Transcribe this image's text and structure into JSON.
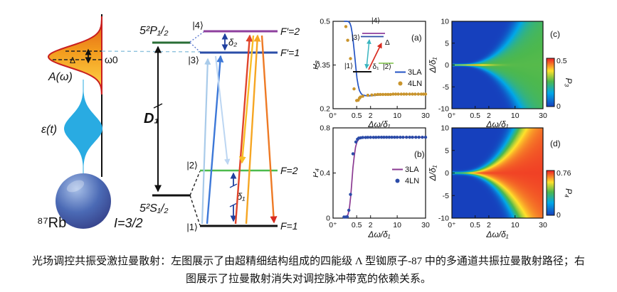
{
  "caption": {
    "line1": "光场调控共振受激拉曼散射：左图展示了由超精细结构组成的四能级 Λ 型铷原子-87 中的多通道共振拉曼散射路径；右",
    "line2": "图展示了拉曼散射消失对调控脉冲带宽的依赖关系。"
  },
  "diagram": {
    "spectrum_label": "A(ω)",
    "pulse_label": "ε(t)",
    "delta_label": "Δ",
    "omega0_label": "ω0",
    "atom_label": "⁸⁷Rb",
    "spin_label": "I=3/2",
    "p_state": "5²P₁/₂",
    "s_state": "5²S₁/₂",
    "d1_label": "D₁",
    "delta1_label": "δ₁",
    "delta2_label": "δ₂",
    "kets": {
      "k1": "|1⟩",
      "k2": "|2⟩",
      "k3": "|3⟩",
      "k4": "|4⟩"
    },
    "hyperfine": {
      "fp2": "F′=2",
      "fp1": "F′=1",
      "f2": "F=2",
      "f1": "F=1"
    },
    "colors": {
      "spectrum_top": "#e05a17",
      "spectrum_bottom": "#ffd94f",
      "spectrum_edge": "#c91f1f",
      "pulse": "#29abe2",
      "sphere_dark": "#2b2d74",
      "sphere_light": "#a8c0e8",
      "p_level": "#2a6e35",
      "f2p_level": "#8e3f9e",
      "f1p_level": "#2b4ea8",
      "f2_level": "#4cbb4c",
      "f1_level": "#111111",
      "arrow_lightblue": "#a9cbea",
      "arrow_blue": "#3d78d8",
      "arrow_faintblue": "#bcd6f2",
      "arrow_red": "#e0442b",
      "arrow_yellow": "#f6a623",
      "arrow_deepyellow": "#f8be26",
      "arrow_orange": "#ee7a25",
      "delta_arrow": "#1f3f9f"
    }
  },
  "colormap": [
    [
      0,
      "#1640bd"
    ],
    [
      0.28,
      "#00a8e8"
    ],
    [
      0.52,
      "#4db84d"
    ],
    [
      0.74,
      "#ffe12b"
    ],
    [
      1,
      "#ed1c24"
    ]
  ],
  "chart_data": [
    {
      "id": "a",
      "type": "line",
      "label": "(a)",
      "xlabel": "Δω/δ₁",
      "ylabel": "P₃",
      "xscale": "cuberoot",
      "xlim": [
        0,
        30
      ],
      "ylim": [
        0.2,
        0.5
      ],
      "xticks": {
        "values": [
          0,
          0.5,
          2,
          10,
          30
        ],
        "labels": [
          "0⁺",
          "0.5",
          "2",
          "10",
          "30"
        ]
      },
      "yticks": {
        "values": [
          0.2,
          0.35,
          0.5
        ],
        "labels": [
          "0.2",
          "0.35",
          "0.5"
        ]
      },
      "legend": {
        "position": "middle-right"
      },
      "series": [
        {
          "name": "3LA",
          "type": "line",
          "color": "#2353c4",
          "points": [
            [
              0.05,
              0.5
            ],
            [
              0.1,
              0.5
            ],
            [
              0.14,
              0.499
            ],
            [
              0.18,
              0.494
            ],
            [
              0.22,
              0.482
            ],
            [
              0.27,
              0.458
            ],
            [
              0.32,
              0.425
            ],
            [
              0.38,
              0.385
            ],
            [
              0.45,
              0.34
            ],
            [
              0.52,
              0.305
            ],
            [
              0.6,
              0.28
            ],
            [
              0.7,
              0.262
            ],
            [
              0.85,
              0.251
            ],
            [
              1,
              0.247
            ],
            [
              1.3,
              0.245
            ],
            [
              1.7,
              0.244
            ],
            [
              2.2,
              0.245
            ],
            [
              3,
              0.246
            ],
            [
              5,
              0.248
            ],
            [
              8,
              0.249
            ],
            [
              12,
              0.25
            ],
            [
              20,
              0.25
            ],
            [
              30,
              0.25
            ]
          ]
        },
        {
          "name": "4LN",
          "type": "scatter",
          "color": "#c9942c",
          "points": [
            [
              0.08,
              0.482
            ],
            [
              0.12,
              0.435
            ],
            [
              0.2,
              0.372
            ],
            [
              0.35,
              0.268
            ],
            [
              0.5,
              0.228
            ],
            [
              0.6,
              0.229
            ],
            [
              0.7,
              0.236
            ],
            [
              0.78,
              0.24
            ],
            [
              1,
              0.243
            ],
            [
              1.6,
              0.246
            ],
            [
              2.2,
              0.247
            ],
            [
              2.8,
              0.248
            ],
            [
              3.4,
              0.249
            ],
            [
              4,
              0.249
            ],
            [
              4.7,
              0.249
            ],
            [
              5.5,
              0.249
            ],
            [
              6.3,
              0.249
            ],
            [
              7.2,
              0.249
            ],
            [
              8.2,
              0.25
            ],
            [
              9.3,
              0.25
            ],
            [
              10.5,
              0.25
            ],
            [
              12,
              0.25
            ],
            [
              13.5,
              0.25
            ],
            [
              15,
              0.25
            ],
            [
              17,
              0.25
            ],
            [
              19,
              0.25
            ],
            [
              21,
              0.25
            ],
            [
              23.5,
              0.25
            ],
            [
              26,
              0.25
            ],
            [
              28,
              0.25
            ],
            [
              30,
              0.25
            ]
          ]
        }
      ],
      "inset": {
        "kets": [
          "|1⟩",
          "|2⟩",
          "|3⟩",
          "|4⟩"
        ],
        "delta1": "δ₁",
        "delta": "Δ"
      }
    },
    {
      "id": "b",
      "type": "line",
      "label": "(b)",
      "xlabel": "Δω/δ₁",
      "ylabel": "P₄",
      "xscale": "cuberoot",
      "xlim": [
        0,
        30
      ],
      "ylim": [
        0,
        0.8
      ],
      "xticks": {
        "values": [
          0,
          0.5,
          2,
          10,
          30
        ],
        "labels": [
          "0⁺",
          "0.5",
          "2",
          "10",
          "30"
        ]
      },
      "yticks": {
        "values": [
          0,
          0.4,
          0.8
        ],
        "labels": [
          "0",
          "0.4",
          "0.8"
        ]
      },
      "legend": {
        "position": "middle-right"
      },
      "series": [
        {
          "name": "3LA",
          "type": "line",
          "color": "#8b3a92",
          "points": [
            [
              0.05,
              0.005
            ],
            [
              0.09,
              0.01
            ],
            [
              0.13,
              0.035
            ],
            [
              0.17,
              0.1
            ],
            [
              0.21,
              0.2
            ],
            [
              0.25,
              0.32
            ],
            [
              0.3,
              0.45
            ],
            [
              0.36,
              0.55
            ],
            [
              0.43,
              0.63
            ],
            [
              0.52,
              0.675
            ],
            [
              0.65,
              0.7
            ],
            [
              0.85,
              0.71
            ],
            [
              1.2,
              0.715
            ],
            [
              2,
              0.717
            ],
            [
              4,
              0.717
            ],
            [
              8,
              0.717
            ],
            [
              15,
              0.717
            ],
            [
              30,
              0.717
            ]
          ]
        },
        {
          "name": "4LN",
          "type": "scatter",
          "color": "#2b4ba8",
          "points": [
            [
              0.05,
              0.01
            ],
            [
              0.08,
              0.01
            ],
            [
              0.11,
              0.012
            ],
            [
              0.15,
              0.07
            ],
            [
              0.2,
              0.21
            ],
            [
              0.3,
              0.57
            ],
            [
              0.45,
              0.675
            ],
            [
              0.55,
              0.7
            ],
            [
              0.65,
              0.71
            ],
            [
              0.8,
              0.712
            ],
            [
              1,
              0.715
            ],
            [
              1.3,
              0.715
            ],
            [
              1.6,
              0.716
            ],
            [
              2,
              0.716
            ],
            [
              2.5,
              0.716
            ],
            [
              3,
              0.716
            ],
            [
              3.6,
              0.717
            ],
            [
              4.3,
              0.717
            ],
            [
              5,
              0.717
            ],
            [
              5.8,
              0.717
            ],
            [
              6.7,
              0.717
            ],
            [
              7.7,
              0.717
            ],
            [
              8.8,
              0.717
            ],
            [
              10,
              0.717
            ],
            [
              11.5,
              0.717
            ],
            [
              13,
              0.717
            ],
            [
              15,
              0.717
            ],
            [
              17,
              0.717
            ],
            [
              19,
              0.717
            ],
            [
              21.5,
              0.717
            ],
            [
              24,
              0.717
            ],
            [
              27,
              0.717
            ],
            [
              30,
              0.717
            ]
          ]
        }
      ]
    },
    {
      "id": "c",
      "type": "heatmap",
      "label": "(c)",
      "xlabel": "Δω/δ₁",
      "ylabel": "Δ/δ₁",
      "xscale": "cuberoot",
      "xlim": [
        0,
        30
      ],
      "ylim": [
        -10,
        10
      ],
      "xticks": {
        "values": [
          0,
          0.5,
          2,
          10,
          30
        ],
        "labels": [
          "0⁺",
          "0.5",
          "2",
          "10",
          "30"
        ]
      },
      "yticks": {
        "values": [
          -10,
          -5,
          0,
          5,
          10
        ],
        "labels": [
          "-10",
          "-5",
          "0",
          "5",
          "10"
        ]
      },
      "colorbar": {
        "min": 0,
        "max": 0.5,
        "tick_labels": [
          "0",
          "0.5"
        ],
        "label": "P₃"
      },
      "model": {
        "plateau": 0.27,
        "slope": 0.75,
        "s0": 0.1,
        "s1": 0.18,
        "line_amp": 0.22,
        "line_sigma": 0.22,
        "line_decay": 2.0,
        "vmax": 0.5
      }
    },
    {
      "id": "d",
      "type": "heatmap",
      "label": "(d)",
      "xlabel": "Δω/δ₁",
      "ylabel": "Δ/δ₁",
      "xscale": "cuberoot",
      "xlim": [
        0,
        30
      ],
      "ylim": [
        -10,
        10
      ],
      "xticks": {
        "values": [
          0,
          0.5,
          2,
          10,
          30
        ],
        "labels": [
          "0⁺",
          "0.5",
          "2",
          "10",
          "30"
        ]
      },
      "yticks": {
        "values": [
          -10,
          -5,
          0,
          5,
          10
        ],
        "labels": [
          "-10",
          "-5",
          "0",
          "5",
          "10"
        ]
      },
      "colorbar": {
        "min": 0,
        "max": 0.76,
        "tick_labels": [
          "0",
          "0.76"
        ],
        "label": "P₄"
      },
      "model": {
        "plateau": 0.74,
        "slope": 0.85,
        "s0": 0.15,
        "s1": 0.22,
        "line_amp": 0.05,
        "line_sigma": 0.3,
        "line_decay": 1.5,
        "vmax": 0.76
      }
    }
  ]
}
